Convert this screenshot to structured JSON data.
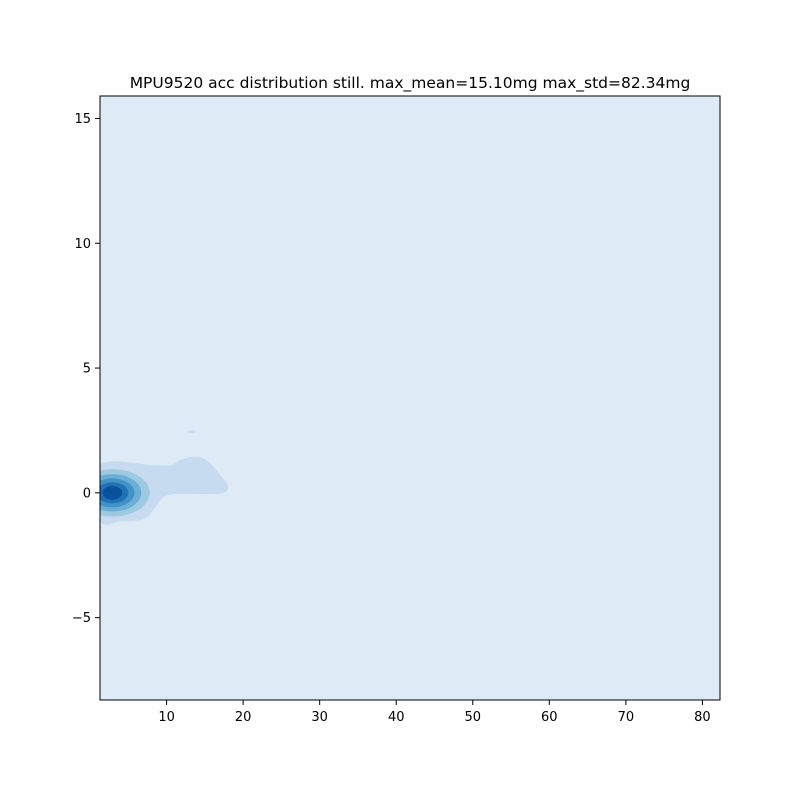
{
  "chart_data": {
    "type": "kde",
    "title": "MPU9520 acc distribution still. max_mean=15.10mg max_std=82.34mg",
    "xlabel": "",
    "ylabel": "",
    "xlim": [
      1.3,
      82.3
    ],
    "ylim": [
      -8.3,
      15.9
    ],
    "x_ticks": [
      10,
      20,
      30,
      40,
      50,
      60,
      70,
      80
    ],
    "y_ticks": [
      -5,
      0,
      5,
      10,
      15
    ],
    "grid": false,
    "legend": "none",
    "colormap": "Blues",
    "colors": {
      "background_level": "#deebf7",
      "level_1": "#c6dbef",
      "level_2": "#9ecae1",
      "level_3": "#6baed6",
      "level_4": "#4292c6",
      "level_5": "#2171b5",
      "level_6": "#08519c"
    },
    "density_levels": [
      {
        "level": 1,
        "outline": [
          [
            1.3,
            1.1
          ],
          [
            8.5,
            1.1
          ],
          [
            10.5,
            1.1
          ],
          [
            12,
            1.35
          ],
          [
            14,
            1.45
          ],
          [
            15.5,
            1.25
          ],
          [
            17,
            0.7
          ],
          [
            18,
            0.3
          ],
          [
            17.5,
            0.0
          ],
          [
            15,
            -0.05
          ],
          [
            11,
            -0.05
          ],
          [
            9.5,
            -0.2
          ],
          [
            8.5,
            -0.6
          ],
          [
            7,
            -1.05
          ],
          [
            4,
            -1.15
          ],
          [
            1.3,
            -1.1
          ]
        ]
      },
      {
        "level": 2,
        "center": [
          2.9,
          0.0
        ],
        "half_width": 4.9,
        "half_height": 0.95
      },
      {
        "level": 3,
        "center": [
          2.9,
          0.0
        ],
        "half_width": 3.8,
        "half_height": 0.75
      },
      {
        "level": 4,
        "center": [
          2.9,
          0.0
        ],
        "half_width": 2.9,
        "half_height": 0.58
      },
      {
        "level": 5,
        "center": [
          2.9,
          0.0
        ],
        "half_width": 2.1,
        "half_height": 0.42
      },
      {
        "level": 6,
        "center": [
          2.9,
          0.0
        ],
        "half_width": 1.3,
        "half_height": 0.27
      }
    ],
    "islands": [
      {
        "level": 1,
        "center": [
          13.3,
          2.45
        ],
        "half_width": 0.55,
        "half_height": 0.06
      }
    ]
  }
}
